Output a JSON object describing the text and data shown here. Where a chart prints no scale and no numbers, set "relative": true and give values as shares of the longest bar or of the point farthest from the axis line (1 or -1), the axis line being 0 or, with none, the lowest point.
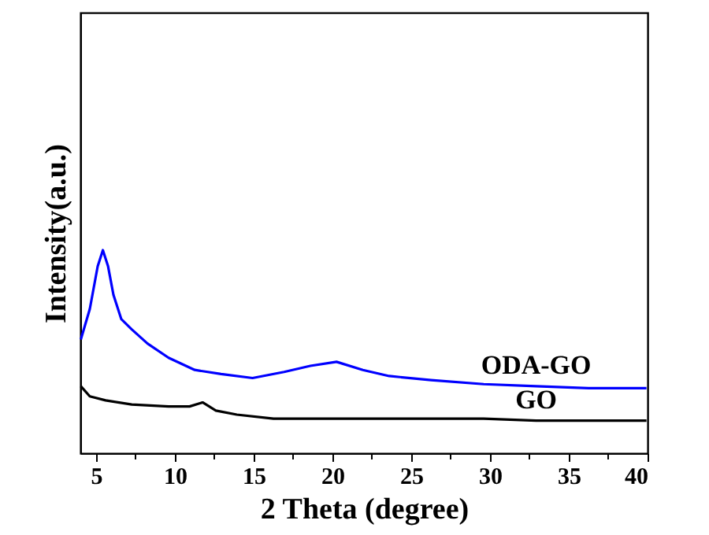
{
  "chart_data": {
    "type": "line",
    "relative": true,
    "xlabel": "2 Theta (degree)",
    "ylabel": "Intensity(a.u.)",
    "xlim": [
      4,
      40
    ],
    "xticks": [
      5,
      {
        "value": 7.5,
        "label": null
      },
      10,
      {
        "value": 12.5,
        "label": null
      },
      15,
      {
        "value": 17.5,
        "label": null
      },
      20,
      {
        "value": 22.5,
        "label": null
      },
      25,
      {
        "value": 27.5,
        "label": null
      },
      30,
      {
        "value": 32.5,
        "label": null
      },
      35,
      {
        "value": 37.5,
        "label": null
      },
      40
    ],
    "grid": false,
    "series": [
      {
        "name": "ODA-GO",
        "color": "#0000ff",
        "x": [
          4.03,
          4.6,
          5.1,
          5.43,
          5.76,
          6.1,
          6.6,
          7.26,
          8.26,
          9.6,
          11.26,
          12.93,
          14.93,
          16.93,
          18.6,
          20.26,
          21.93,
          23.6,
          26.26,
          29.6,
          32.93,
          36.26,
          39.93
        ],
        "values": [
          0.56,
          0.71,
          0.92,
          1,
          0.92,
          0.78,
          0.66,
          0.61,
          0.54,
          0.47,
          0.41,
          0.39,
          0.37,
          0.4,
          0.43,
          0.45,
          0.41,
          0.38,
          0.36,
          0.34,
          0.33,
          0.32,
          0.32
        ]
      },
      {
        "name": "GO",
        "color": "#000000",
        "x": [
          4.03,
          4.6,
          5.6,
          7.26,
          9.6,
          10.93,
          11.76,
          12.6,
          13.93,
          16.26,
          22.93,
          26.26,
          29.6,
          32.93,
          36.26,
          39.93
        ],
        "values": [
          0.33,
          0.28,
          0.26,
          0.24,
          0.23,
          0.23,
          0.25,
          0.21,
          0.19,
          0.17,
          0.17,
          0.17,
          0.17,
          0.16,
          0.16,
          0.16
        ]
      }
    ]
  }
}
